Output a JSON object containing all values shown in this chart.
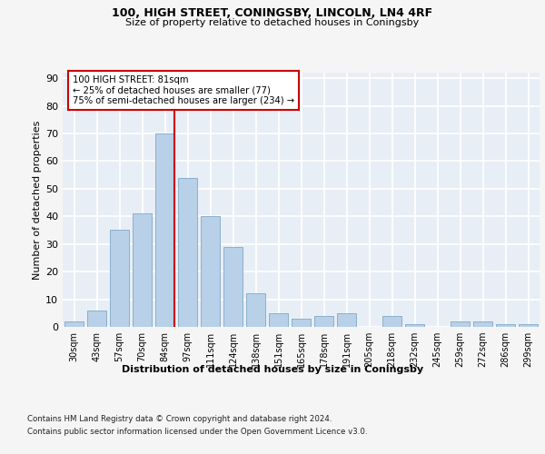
{
  "title1": "100, HIGH STREET, CONINGSBY, LINCOLN, LN4 4RF",
  "title2": "Size of property relative to detached houses in Coningsby",
  "xlabel": "Distribution of detached houses by size in Coningsby",
  "ylabel": "Number of detached properties",
  "categories": [
    "30sqm",
    "43sqm",
    "57sqm",
    "70sqm",
    "84sqm",
    "97sqm",
    "111sqm",
    "124sqm",
    "138sqm",
    "151sqm",
    "165sqm",
    "178sqm",
    "191sqm",
    "205sqm",
    "218sqm",
    "232sqm",
    "245sqm",
    "259sqm",
    "272sqm",
    "286sqm",
    "299sqm"
  ],
  "values": [
    2,
    6,
    35,
    41,
    70,
    54,
    40,
    29,
    12,
    5,
    3,
    4,
    5,
    0,
    4,
    1,
    0,
    2,
    2,
    1,
    1
  ],
  "bar_color": "#b8d0e8",
  "bar_edge_color": "#8ab0cc",
  "background_color": "#e8eef5",
  "grid_color": "#ffffff",
  "vline_x_index": 4,
  "vline_color": "#cc0000",
  "annotation_text": "100 HIGH STREET: 81sqm\n← 25% of detached houses are smaller (77)\n75% of semi-detached houses are larger (234) →",
  "annotation_box_color": "#ffffff",
  "annotation_box_edge": "#cc0000",
  "footer1": "Contains HM Land Registry data © Crown copyright and database right 2024.",
  "footer2": "Contains public sector information licensed under the Open Government Licence v3.0.",
  "ylim": [
    0,
    92
  ],
  "yticks": [
    0,
    10,
    20,
    30,
    40,
    50,
    60,
    70,
    80,
    90
  ],
  "fig_bg": "#f5f5f5"
}
